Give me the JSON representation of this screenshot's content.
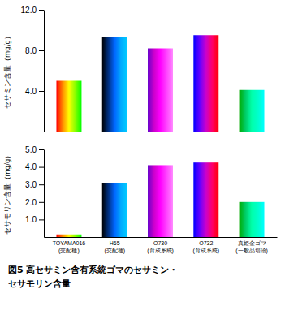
{
  "chart_data": [
    {
      "type": "bar",
      "title": "図5 高セサミン含有系統ゴマのセサミン・\nセサモリン含量",
      "ylabel": "セサミン含量（mg/g）",
      "values": [
        5.0,
        9.3,
        8.2,
        9.5,
        4.1
      ],
      "ylim": [
        0,
        12.0
      ],
      "yticks": [
        {
          "value": 4.0,
          "label": "4.0"
        },
        {
          "value": 8.0,
          "label": "8.0"
        },
        {
          "value": 12.0,
          "label": "12.0"
        }
      ],
      "tick_labels": "y",
      "grid": false,
      "colors": [
        [
          "#ff0000",
          "#ff8800",
          "#ffff00",
          "#88ff00",
          "#00ff00"
        ],
        [
          "#000000",
          "#003080",
          "#0066ff",
          "#00aaff",
          "#00ccff"
        ],
        [
          "#6600cc",
          "#cc00cc",
          "#ff00ff",
          "#ff44ff",
          "#ff88ff"
        ],
        [
          "#0000ff",
          "#6600ff",
          "#cc00cc",
          "#ff0066",
          "#ff0000"
        ],
        [
          "#00aa00",
          "#00cc66",
          "#00ffaa",
          "#00ffcc",
          "#00ffff"
        ]
      ]
    },
    {
      "type": "bar",
      "ylabel": "セサモリン含量（mg/g）",
      "categories": [
        "TOYAMA016\n(交配種)",
        "H65\n(交配種)",
        "O730\n(育成系統)",
        "O732\n(育成系統)",
        "真姫金ゴマ\n(一般品培洽)"
      ],
      "values": [
        0.15,
        3.1,
        4.1,
        4.25,
        2.0
      ],
      "ylim": [
        0,
        5.0
      ],
      "yticks": [
        {
          "value": 1.0,
          "label": "1.0"
        },
        {
          "value": 2.0,
          "label": "2.0"
        },
        {
          "value": 3.0,
          "label": "3.0"
        },
        {
          "value": 4.0,
          "label": "4.0"
        },
        {
          "value": 5.0,
          "label": "5.0"
        }
      ],
      "grid": false,
      "colors": [
        [
          "#ff0000",
          "#ff8800",
          "#ffff00",
          "#88ff00",
          "#00ff00"
        ],
        [
          "#000000",
          "#003080",
          "#0066ff",
          "#00aaff",
          "#00ccff"
        ],
        [
          "#6600cc",
          "#cc00cc",
          "#ff00ff",
          "#ff44ff",
          "#ff88ff"
        ],
        [
          "#0000ff",
          "#6600ff",
          "#cc00cc",
          "#ff0066",
          "#ff0000"
        ],
        [
          "#00aa00",
          "#00cc66",
          "#00ffaa",
          "#00ffcc",
          "#00ffff"
        ]
      ]
    }
  ]
}
